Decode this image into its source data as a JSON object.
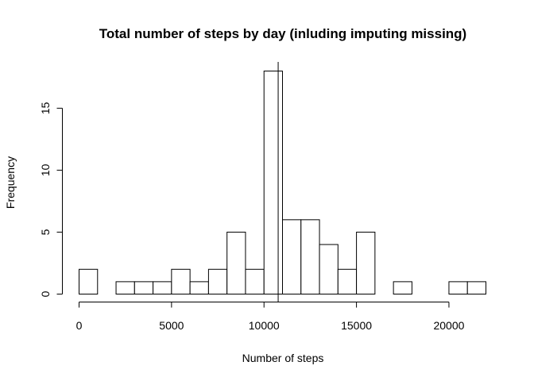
{
  "chart_data": {
    "type": "bar",
    "title": "Total number of steps by day (inluding imputing missing)",
    "xlabel": "Number of steps",
    "ylabel": "Frequency",
    "bin_width": 1000,
    "bin_starts": [
      0,
      1000,
      2000,
      3000,
      4000,
      5000,
      6000,
      7000,
      8000,
      9000,
      10000,
      11000,
      12000,
      13000,
      14000,
      15000,
      16000,
      17000,
      18000,
      19000,
      20000,
      21000
    ],
    "values": [
      2,
      0,
      1,
      1,
      1,
      2,
      1,
      2,
      5,
      2,
      18,
      6,
      6,
      4,
      2,
      5,
      0,
      1,
      0,
      0,
      1,
      1
    ],
    "xlim": [
      0,
      22000
    ],
    "ylim": [
      0,
      18
    ],
    "x_ticks": [
      0,
      5000,
      10000,
      15000,
      20000
    ],
    "x_tick_labels": [
      "0",
      "5000",
      "10000",
      "15000",
      "20000"
    ],
    "y_ticks": [
      0,
      5,
      10,
      15
    ],
    "y_tick_labels": [
      "0",
      "5",
      "10",
      "15"
    ],
    "mean_line": 10766,
    "grid": false
  }
}
